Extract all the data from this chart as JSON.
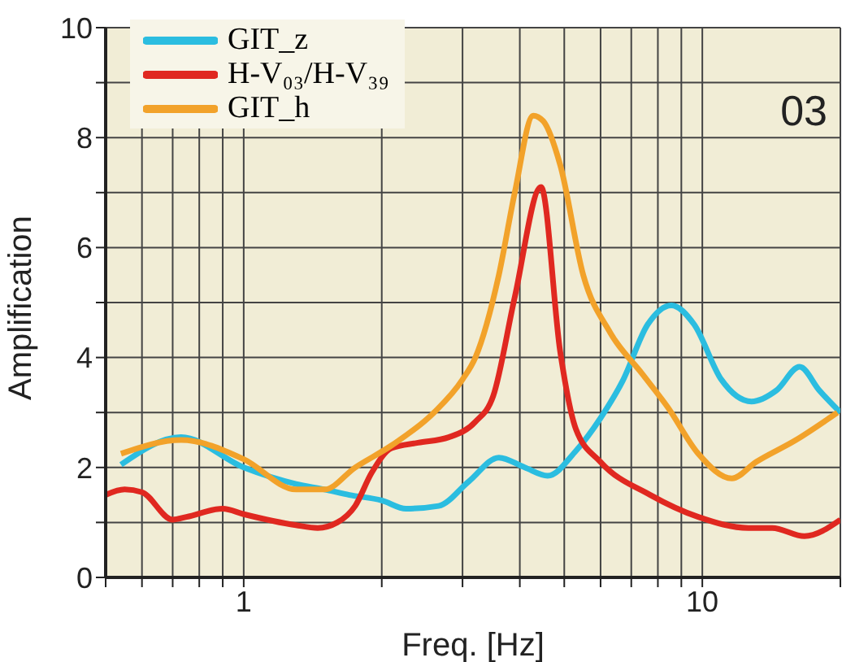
{
  "chart_data": {
    "type": "line",
    "xlabel": "Freq. [Hz]",
    "ylabel": "Amplification",
    "log": "x",
    "grid": true,
    "legend": "top left",
    "marker": "none",
    "line_style": "solid",
    "xlim": [
      0.5,
      20
    ],
    "ylim": [
      0,
      10
    ],
    "xticks": [
      {
        "value": 0.5,
        "label": null
      },
      {
        "value": 0.6,
        "label": null
      },
      {
        "value": 0.7,
        "label": null
      },
      {
        "value": 0.8,
        "label": null
      },
      {
        "value": 0.9,
        "label": null
      },
      1,
      {
        "value": 2,
        "label": null
      },
      {
        "value": 3,
        "label": null
      },
      {
        "value": 4,
        "label": null
      },
      {
        "value": 5,
        "label": null
      },
      {
        "value": 6,
        "label": null
      },
      {
        "value": 7,
        "label": null
      },
      {
        "value": 8,
        "label": null
      },
      {
        "value": 9,
        "label": null
      },
      10,
      {
        "value": 20,
        "label": null
      }
    ],
    "yticks": [
      0,
      {
        "value": 1,
        "label": null
      },
      2,
      {
        "value": 3,
        "label": null
      },
      4,
      {
        "value": 5,
        "label": null
      },
      6,
      {
        "value": 7,
        "label": null
      },
      8,
      {
        "value": 9,
        "label": null
      },
      10
    ],
    "annotations": [
      "03"
    ],
    "series": [
      {
        "name": "GIT_z",
        "color": "#2bbde0",
        "x": [
          0.54,
          0.73,
          1.0,
          1.3,
          1.5,
          1.7,
          2.0,
          2.26,
          2.66,
          3.1,
          3.6,
          4.1,
          4.6,
          5.3,
          6.0,
          6.7,
          7.6,
          8.56,
          9.6,
          11,
          12.8,
          14.5,
          16.3,
          18,
          20
        ],
        "values": [
          2.05,
          2.55,
          2.0,
          1.7,
          1.6,
          1.5,
          1.4,
          1.25,
          1.3,
          1.75,
          2.18,
          2.0,
          1.85,
          2.3,
          2.9,
          3.57,
          4.6,
          4.95,
          4.6,
          3.6,
          3.2,
          3.4,
          3.83,
          3.4,
          3.0
        ]
      },
      {
        "name": "H-V₀₃/H-V₃₉",
        "color": "#e02820",
        "x": [
          0.5,
          0.55,
          0.6,
          0.7,
          0.75,
          0.9,
          1.0,
          1.3,
          1.45,
          1.6,
          1.75,
          1.9,
          2.1,
          2.4,
          2.8,
          3.2,
          3.5,
          3.9,
          4.45,
          4.9,
          5.3,
          6.0,
          7.7,
          9.8,
          12.6,
          14.2,
          16.7,
          20
        ],
        "values": [
          1.5,
          1.6,
          1.55,
          1.05,
          1.1,
          1.25,
          1.15,
          0.95,
          0.9,
          1.0,
          1.3,
          1.9,
          2.35,
          2.45,
          2.55,
          2.83,
          3.3,
          5.1,
          7.1,
          4.1,
          2.7,
          2.1,
          1.5,
          1.1,
          0.9,
          0.9,
          0.75,
          1.05
        ]
      },
      {
        "name": "GIT_h",
        "color": "#f2a22a",
        "x": [
          0.54,
          0.73,
          1.0,
          1.3,
          1.5,
          1.75,
          2.1,
          2.6,
          3.0,
          3.2,
          3.6,
          3.9,
          4.28,
          4.5,
          4.9,
          5.5,
          6.3,
          7.4,
          8.4,
          9.8,
          11.6,
          13.1,
          16,
          19.7
        ],
        "values": [
          2.25,
          2.5,
          2.15,
          1.6,
          1.6,
          2.0,
          2.4,
          3.0,
          3.6,
          4.0,
          5.5,
          7.0,
          8.4,
          8.3,
          7.5,
          5.5,
          4.45,
          3.7,
          3.1,
          2.25,
          1.8,
          2.1,
          2.5,
          3.0
        ]
      }
    ]
  }
}
